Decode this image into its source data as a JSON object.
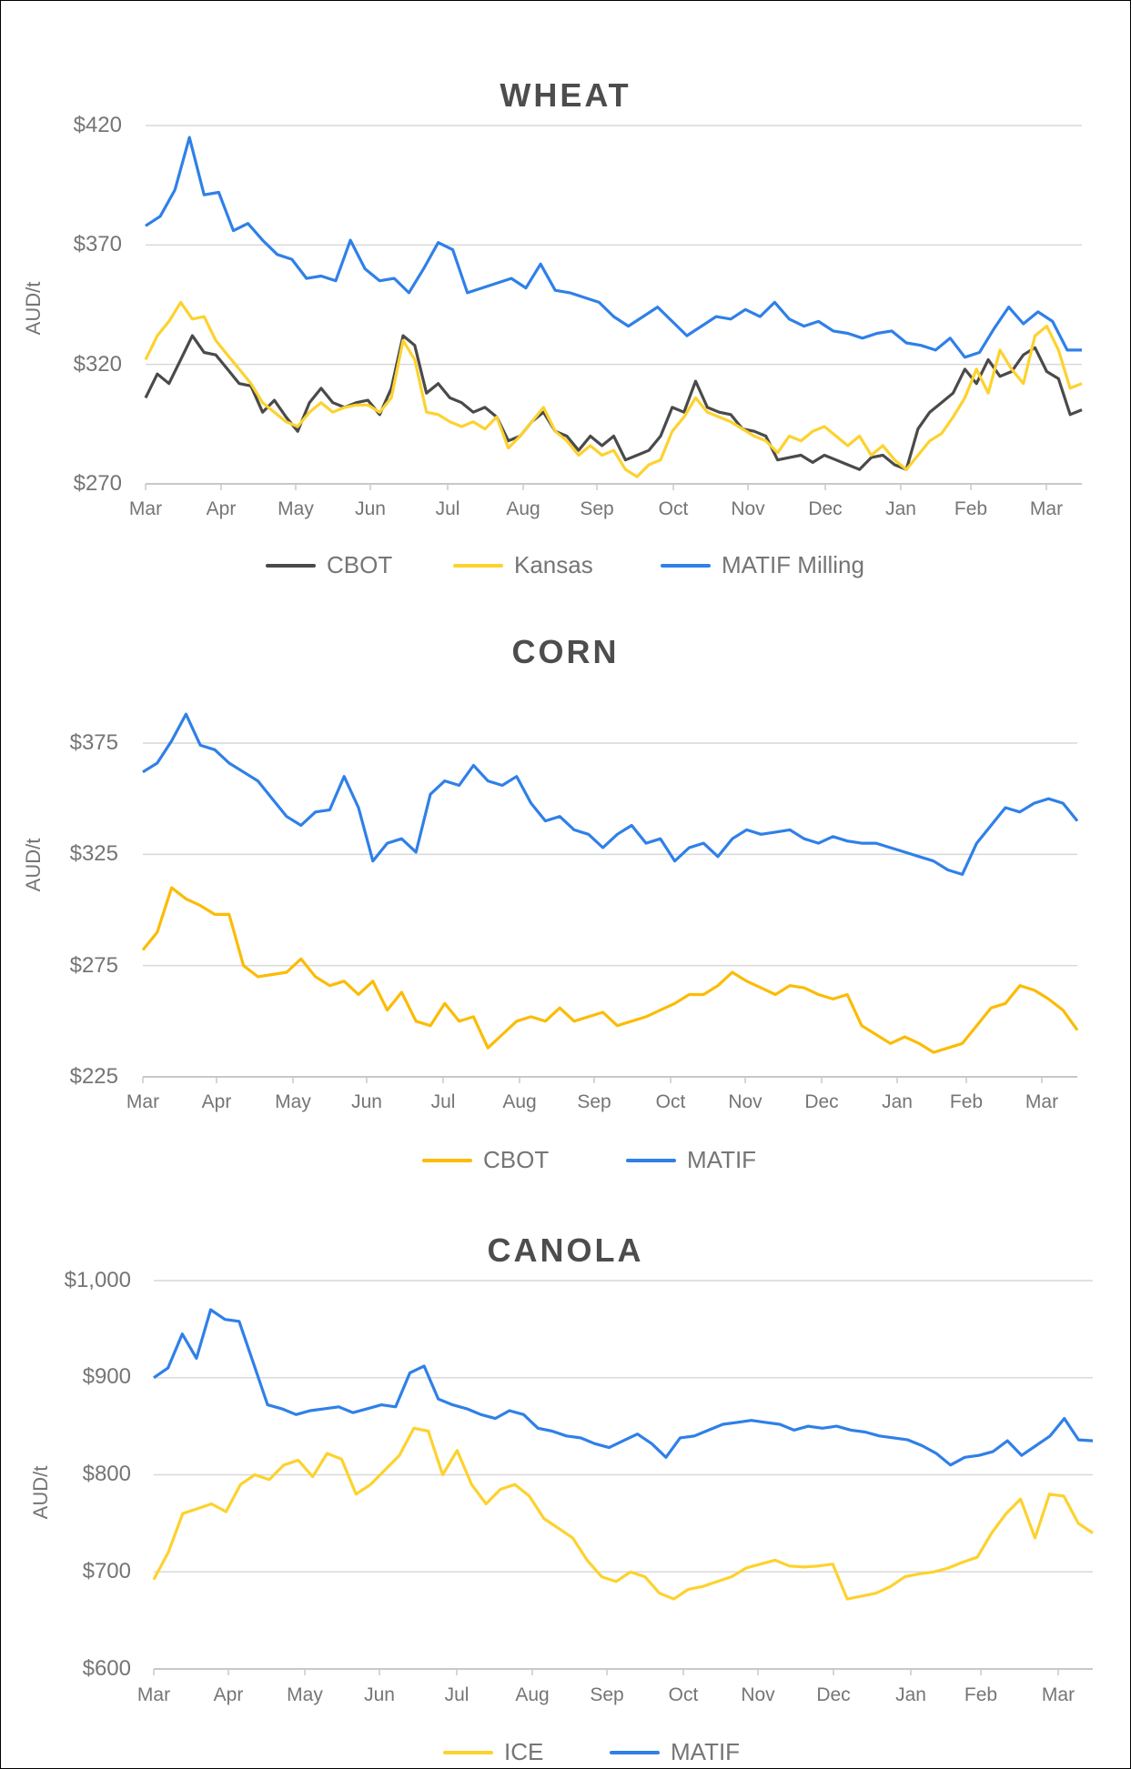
{
  "chart_data": [
    {
      "type": "line",
      "title": "WHEAT",
      "xlabel": "",
      "ylabel": "AUD/t",
      "ylim": [
        270,
        420
      ],
      "yticks": [
        "$270",
        "$320",
        "$370",
        "$420"
      ],
      "ytick_values": [
        270,
        320,
        370,
        420
      ],
      "categories": [
        "Mar",
        "Apr",
        "May",
        "Jun",
        "Jul",
        "Aug",
        "Sep",
        "Oct",
        "Nov",
        "Dec",
        "Jan",
        "Feb",
        "Mar"
      ],
      "grid": true,
      "legend_position": "bottom",
      "x_unit": "week index (0 = start of Mar, 52 = start of following Mar)",
      "series": [
        {
          "name": "CBOT",
          "color": "#4a4a4a",
          "values": [
            306,
            316,
            312,
            322,
            332,
            325,
            324,
            318,
            312,
            311,
            300,
            305,
            298,
            292,
            304,
            310,
            304,
            302,
            304,
            305,
            299,
            310,
            332,
            328,
            308,
            312,
            306,
            304,
            300,
            302,
            298,
            288,
            290,
            296,
            300,
            292,
            290,
            284,
            290,
            286,
            290,
            280,
            282,
            284,
            290,
            302,
            300,
            313,
            302,
            300,
            299,
            293,
            292,
            290,
            280,
            281,
            282,
            279,
            282,
            280,
            278,
            276,
            281,
            282,
            278,
            276,
            293,
            300,
            304,
            308,
            318,
            312,
            322,
            315,
            317,
            324,
            327,
            317,
            314,
            299,
            301
          ]
        },
        {
          "name": "Kansas",
          "color": "#fdd22e",
          "values": [
            322,
            332,
            338,
            346,
            339,
            340,
            330,
            324,
            318,
            312,
            304,
            300,
            296,
            294,
            300,
            304,
            300,
            302,
            303,
            303,
            300,
            306,
            330,
            322,
            300,
            299,
            296,
            294,
            296,
            293,
            298,
            285,
            290,
            296,
            302,
            292,
            288,
            282,
            286,
            282,
            284,
            276,
            273,
            278,
            280,
            292,
            298,
            306,
            300,
            298,
            296,
            293,
            290,
            288,
            283,
            290,
            288,
            292,
            294,
            290,
            286,
            290,
            282,
            286,
            280,
            276,
            282,
            288,
            291,
            298,
            306,
            318,
            308,
            326,
            318,
            312,
            332,
            336,
            326,
            310,
            312
          ]
        },
        {
          "name": "MATIF Milling",
          "color": "#2f80e8",
          "values": [
            378,
            382,
            393,
            415,
            391,
            392,
            376,
            379,
            372,
            366,
            364,
            356,
            357,
            355,
            372,
            360,
            355,
            356,
            350,
            360,
            371,
            368,
            350,
            352,
            354,
            356,
            352,
            362,
            351,
            350,
            348,
            346,
            340,
            336,
            340,
            344,
            338,
            332,
            336,
            340,
            339,
            343,
            340,
            346,
            339,
            336,
            338,
            334,
            333,
            331,
            333,
            334,
            329,
            328,
            326,
            331,
            323,
            325,
            335,
            344,
            337,
            342,
            338,
            326,
            326
          ]
        }
      ]
    },
    {
      "type": "line",
      "title": "CORN",
      "xlabel": "",
      "ylabel": "AUD/t",
      "ylim": [
        225,
        375
      ],
      "yticks": [
        "$225",
        "$275",
        "$325",
        "$375"
      ],
      "ytick_values": [
        225,
        275,
        325,
        375
      ],
      "categories": [
        "Mar",
        "Apr",
        "May",
        "Jun",
        "Jul",
        "Aug",
        "Sep",
        "Oct",
        "Nov",
        "Dec",
        "Jan",
        "Feb",
        "Mar"
      ],
      "grid": true,
      "legend_position": "bottom",
      "series": [
        {
          "name": "CBOT",
          "color": "#fbbc05",
          "values": [
            282,
            290,
            310,
            305,
            302,
            298,
            298,
            275,
            270,
            271,
            272,
            278,
            270,
            266,
            268,
            262,
            268,
            255,
            263,
            250,
            248,
            258,
            250,
            252,
            238,
            244,
            250,
            252,
            250,
            256,
            250,
            252,
            254,
            248,
            250,
            252,
            255,
            258,
            262,
            262,
            266,
            272,
            268,
            265,
            262,
            266,
            265,
            262,
            260,
            262,
            248,
            244,
            240,
            243,
            240,
            236,
            238,
            240,
            248,
            256,
            258,
            266,
            264,
            260,
            255,
            246
          ]
        },
        {
          "name": "MATIF",
          "color": "#2f80e8",
          "values": [
            362,
            366,
            376,
            388,
            374,
            372,
            366,
            362,
            358,
            350,
            342,
            338,
            344,
            345,
            360,
            346,
            322,
            330,
            332,
            326,
            352,
            358,
            356,
            365,
            358,
            356,
            360,
            348,
            340,
            342,
            336,
            334,
            328,
            334,
            338,
            330,
            332,
            322,
            328,
            330,
            324,
            332,
            336,
            334,
            335,
            336,
            332,
            330,
            333,
            331,
            330,
            330,
            328,
            326,
            324,
            322,
            318,
            316,
            330,
            338,
            346,
            344,
            348,
            350,
            348,
            340
          ]
        }
      ]
    },
    {
      "type": "line",
      "title": "CANOLA",
      "xlabel": "",
      "ylabel": "AUD/t",
      "ylim": [
        600,
        1000
      ],
      "yticks": [
        "$600",
        "$700",
        "$800",
        "$900",
        "$1,000"
      ],
      "ytick_values": [
        600,
        700,
        800,
        900,
        1000
      ],
      "categories": [
        "Mar",
        "Apr",
        "May",
        "Jun",
        "Jul",
        "Aug",
        "Sep",
        "Oct",
        "Nov",
        "Dec",
        "Jan",
        "Feb",
        "Mar"
      ],
      "grid": true,
      "legend_position": "bottom",
      "series": [
        {
          "name": "ICE",
          "color": "#fdd22e",
          "values": [
            692,
            720,
            760,
            765,
            770,
            762,
            790,
            800,
            795,
            810,
            815,
            798,
            822,
            816,
            780,
            790,
            805,
            820,
            848,
            845,
            800,
            825,
            790,
            770,
            785,
            790,
            778,
            755,
            745,
            735,
            712,
            695,
            690,
            700,
            695,
            678,
            672,
            682,
            685,
            690,
            695,
            704,
            708,
            712,
            706,
            705,
            706,
            708,
            672,
            675,
            678,
            685,
            695,
            698,
            700,
            704,
            710,
            715,
            740,
            760,
            775,
            735,
            780,
            778,
            750,
            740
          ]
        },
        {
          "name": "MATIF",
          "color": "#2f80e8",
          "values": [
            900,
            910,
            945,
            920,
            970,
            960,
            958,
            915,
            872,
            868,
            862,
            866,
            868,
            870,
            864,
            868,
            872,
            870,
            905,
            912,
            878,
            872,
            868,
            862,
            858,
            866,
            862,
            848,
            845,
            840,
            838,
            832,
            828,
            835,
            842,
            832,
            818,
            838,
            840,
            846,
            852,
            854,
            856,
            854,
            852,
            846,
            850,
            848,
            850,
            846,
            844,
            840,
            838,
            836,
            830,
            822,
            810,
            818,
            820,
            824,
            835,
            820,
            830,
            840,
            858,
            836,
            835
          ]
        }
      ]
    }
  ],
  "ui": {
    "wheat": {
      "title": "WHEAT",
      "ylabel": "AUD/t",
      "yticks": [
        "$420",
        "$370",
        "$320",
        "$270"
      ],
      "xticks": [
        "Mar",
        "Apr",
        "May",
        "Jun",
        "Jul",
        "Aug",
        "Sep",
        "Oct",
        "Nov",
        "Dec",
        "Jan",
        "Feb",
        "Mar"
      ],
      "legend": [
        "CBOT",
        "Kansas",
        "MATIF Milling"
      ]
    },
    "corn": {
      "title": "CORN",
      "ylabel": "AUD/t",
      "yticks": [
        "$375",
        "$325",
        "$275",
        "$225"
      ],
      "xticks": [
        "Mar",
        "Apr",
        "May",
        "Jun",
        "Jul",
        "Aug",
        "Sep",
        "Oct",
        "Nov",
        "Dec",
        "Jan",
        "Feb",
        "Mar"
      ],
      "legend": [
        "CBOT",
        "MATIF"
      ]
    },
    "canola": {
      "title": "CANOLA",
      "ylabel": "AUD/t",
      "yticks": [
        "$1,000",
        "$900",
        "$800",
        "$700",
        "$600"
      ],
      "xticks": [
        "Mar",
        "Apr",
        "May",
        "Jun",
        "Jul",
        "Aug",
        "Sep",
        "Oct",
        "Nov",
        "Dec",
        "Jan",
        "Feb",
        "Mar"
      ],
      "legend": [
        "ICE",
        "MATIF"
      ]
    },
    "colors": {
      "gridline": "#d9d9d9",
      "axis": "#c8c8c8",
      "title": "#4d4d4d",
      "tick_text": "#757575"
    }
  }
}
